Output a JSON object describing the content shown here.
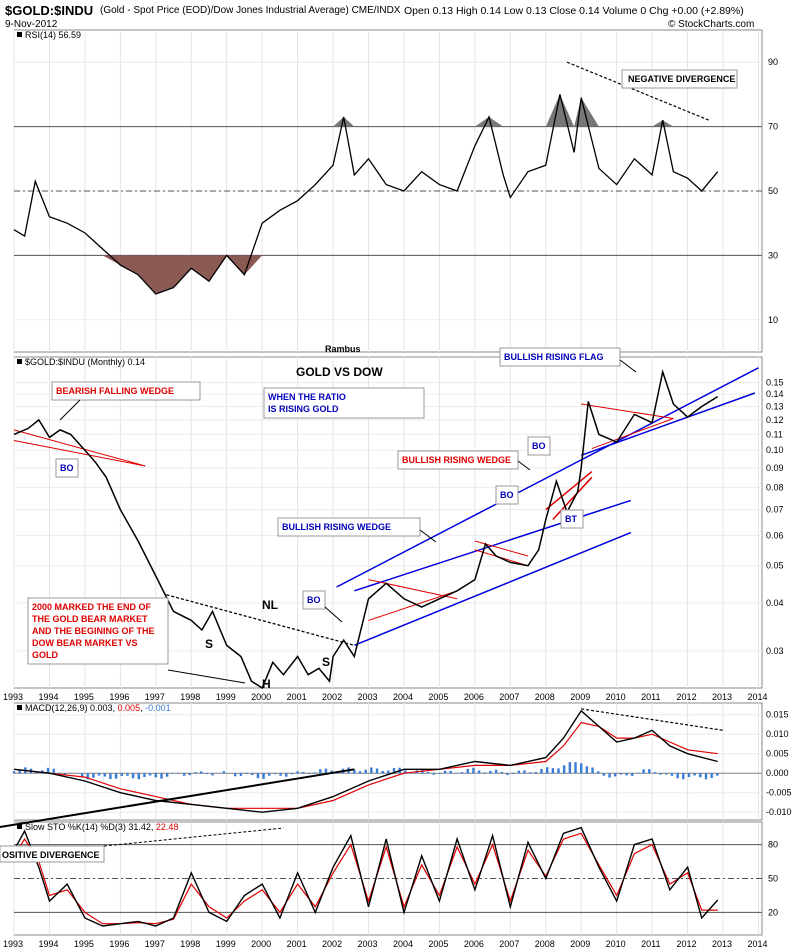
{
  "header": {
    "symbol": "$GOLD:$INDU",
    "description": "(Gold - Spot Price (EOD)/Dow Jones Industrial Average) CME/INDX",
    "date": "9-Nov-2012",
    "quote": "Open 0.13  High 0.14  Low 0.13  Close 0.14  Volume 0  Chg +0.00 (+2.89%)",
    "watermark": "© StockCharts.com"
  },
  "colors": {
    "price": "#000000",
    "blue_line": "#0000dd",
    "red_line": "#e00000",
    "rsi_fill_low": "#8b5a55",
    "rsi_fill_high": "#777777",
    "macd_hist": "#3a7bd5",
    "macd_signal": "#e00000",
    "stoch_d": "#e00000"
  },
  "chart_data": [
    {
      "id": "rsi",
      "type": "line",
      "label": "RSI(14) 56.59",
      "ylim": [
        0,
        100
      ],
      "ticks": [
        10,
        30,
        50,
        70,
        90
      ],
      "reference_lines": [
        30,
        70
      ],
      "dashed_line": 50,
      "x": [
        1993,
        1993.3,
        1993.6,
        1994,
        1994.5,
        1995,
        1995.5,
        1996,
        1996.5,
        1997,
        1997.5,
        1998,
        1998.5,
        1999,
        1999.5,
        2000,
        2000.5,
        2001,
        2001.5,
        2002,
        2002.3,
        2002.6,
        2003,
        2003.5,
        2004,
        2004.5,
        2005,
        2005.5,
        2006,
        2006.4,
        2006.8,
        2007,
        2007.5,
        2008,
        2008.4,
        2008.8,
        2009,
        2009.5,
        2010,
        2010.5,
        2011,
        2011.3,
        2011.6,
        2012,
        2012.4,
        2012.85
      ],
      "values": [
        38,
        36,
        53,
        42,
        40,
        37,
        32,
        27,
        24,
        18,
        20,
        26,
        22,
        30,
        24,
        40,
        44,
        47,
        52,
        58,
        73,
        55,
        60,
        52,
        50,
        56,
        52,
        50,
        64,
        73,
        55,
        48,
        56,
        58,
        80,
        62,
        79,
        57,
        52,
        60,
        55,
        72,
        56,
        54,
        50,
        56
      ],
      "annotations": [
        {
          "text": "NEGATIVE DIVERGENCE"
        }
      ]
    },
    {
      "id": "price",
      "type": "line",
      "label": "$GOLD:$INDU (Monthly) 0.14",
      "title": "GOLD VS DOW",
      "scale": "log",
      "ylim": [
        0.024,
        0.175
      ],
      "ticks": [
        0.03,
        0.04,
        0.05,
        0.06,
        0.07,
        0.08,
        0.09,
        0.1,
        0.11,
        0.12,
        0.13,
        0.14,
        0.15
      ],
      "x_ticks": [
        "1993",
        "1994",
        "1995",
        "1996",
        "1997",
        "1998",
        "1999",
        "2000",
        "2001",
        "2002",
        "2003",
        "2004",
        "2005",
        "2006",
        "2007",
        "2008",
        "2009",
        "2010",
        "2011",
        "2012",
        "2013",
        "2014"
      ],
      "x": [
        1993,
        1993.4,
        1993.7,
        1994,
        1994.3,
        1994.6,
        1995,
        1995.3,
        1995.6,
        1996,
        1996.5,
        1997,
        1997.5,
        1998,
        1998.3,
        1998.6,
        1999,
        1999.4,
        1999.7,
        2000,
        2000.3,
        2000.6,
        2001,
        2001.3,
        2001.6,
        2001.9,
        2002,
        2002.3,
        2002.6,
        2003,
        2003.5,
        2004,
        2004.5,
        2005,
        2005.5,
        2006,
        2006.3,
        2006.6,
        2007,
        2007.5,
        2007.8,
        2008,
        2008.3,
        2008.6,
        2008.9,
        2009,
        2009.2,
        2009.5,
        2010,
        2010.5,
        2011,
        2011.3,
        2011.6,
        2012,
        2012.4,
        2012.85
      ],
      "values": [
        0.11,
        0.114,
        0.12,
        0.108,
        0.113,
        0.11,
        0.1,
        0.093,
        0.085,
        0.07,
        0.058,
        0.047,
        0.038,
        0.036,
        0.034,
        0.038,
        0.031,
        0.029,
        0.025,
        0.024,
        0.028,
        0.026,
        0.029,
        0.026,
        0.027,
        0.025,
        0.029,
        0.032,
        0.029,
        0.041,
        0.045,
        0.041,
        0.039,
        0.041,
        0.043,
        0.046,
        0.057,
        0.053,
        0.051,
        0.05,
        0.055,
        0.066,
        0.083,
        0.069,
        0.078,
        0.09,
        0.134,
        0.11,
        0.105,
        0.124,
        0.118,
        0.16,
        0.132,
        0.122,
        0.13,
        0.138
      ],
      "annotations": [
        {
          "text": "BEARISH FALLING WEDGE"
        },
        {
          "text": "BO"
        },
        {
          "text": "WHEN THE RATIO IS RISING GOLD IS OUTPERFORMING THE DOW"
        },
        {
          "text": "BULLISH RISING FLAG"
        },
        {
          "text": "BULLISH RISING WEDGE"
        },
        {
          "text": "BULLISH RISING WEDGE"
        },
        {
          "text": "BO"
        },
        {
          "text": "BO"
        },
        {
          "text": "BT"
        },
        {
          "text": "BO"
        },
        {
          "text": "NL"
        },
        {
          "text": "S"
        },
        {
          "text": "H"
        },
        {
          "text": "S"
        },
        {
          "text": "2000 MARKED THE END OF THE GOLD BEAR MARKET AND THE BEGINING OF THE DOW BEAR MARKET VS GOLD"
        },
        {
          "text": "Rambus"
        }
      ]
    },
    {
      "id": "macd",
      "type": "line",
      "label_prefix": "MACD(12,26,9) 0.003, ",
      "label_signal": "0.005",
      "label_sep": ", ",
      "label_hist": "-0.001",
      "ylim": [
        -0.012,
        0.018
      ],
      "ticks": [
        -0.01,
        -0.005,
        0.0,
        0.005,
        0.01,
        0.015
      ],
      "tick_labels": [
        "-0.010",
        "-0.005",
        "0.000",
        "0.005",
        "0.010",
        "0.015"
      ],
      "x": [
        1993,
        1994,
        1995,
        1996,
        1997,
        1998,
        1999,
        2000,
        2001,
        2002,
        2003,
        2004,
        2005,
        2006,
        2007,
        2008,
        2008.5,
        2009,
        2009.5,
        2010,
        2010.5,
        2011,
        2011.5,
        2012,
        2012.85
      ],
      "macd": [
        0.001,
        0.0,
        -0.002,
        -0.005,
        -0.007,
        -0.008,
        -0.009,
        -0.01,
        -0.009,
        -0.006,
        -0.002,
        0.001,
        0.001,
        0.003,
        0.002,
        0.004,
        0.009,
        0.016,
        0.012,
        0.008,
        0.009,
        0.011,
        0.007,
        0.005,
        0.003
      ],
      "signal": [
        0.001,
        0.0,
        -0.001,
        -0.004,
        -0.006,
        -0.008,
        -0.009,
        -0.009,
        -0.009,
        -0.007,
        -0.003,
        0.0,
        0.001,
        0.002,
        0.002,
        0.003,
        0.007,
        0.013,
        0.012,
        0.009,
        0.009,
        0.01,
        0.008,
        0.006,
        0.005
      ],
      "histogram": [
        0.001,
        0.001,
        -0.001,
        -0.001,
        -0.001,
        0.0,
        0.0,
        -0.001,
        0.0,
        0.001,
        0.001,
        0.001,
        0.0,
        0.001,
        0.0,
        0.001,
        0.002,
        0.003,
        0.0,
        -0.001,
        0.0,
        0.001,
        -0.001,
        -0.001,
        -0.001
      ]
    },
    {
      "id": "stoch",
      "type": "line",
      "label_prefix": "Slow STO %K(14) %D(3) 31.42, ",
      "label_d": "22.48",
      "ylim": [
        0,
        100
      ],
      "ticks": [
        20,
        50,
        80
      ],
      "x": [
        1993,
        1993.3,
        1993.7,
        1994,
        1994.5,
        1995,
        1995.5,
        1996,
        1996.5,
        1997,
        1997.5,
        1998,
        1998.5,
        1999,
        1999.5,
        2000,
        2000.5,
        2001,
        2001.5,
        2002,
        2002.5,
        2003,
        2003.5,
        2004,
        2004.5,
        2005,
        2005.5,
        2006,
        2006.5,
        2007,
        2007.5,
        2008,
        2008.5,
        2009,
        2009.5,
        2010,
        2010.5,
        2011,
        2011.5,
        2012,
        2012.4,
        2012.85
      ],
      "k": [
        75,
        92,
        60,
        30,
        45,
        15,
        8,
        10,
        12,
        8,
        15,
        55,
        20,
        12,
        35,
        45,
        15,
        55,
        20,
        60,
        88,
        25,
        85,
        20,
        70,
        30,
        85,
        40,
        88,
        25,
        82,
        50,
        90,
        95,
        60,
        30,
        80,
        85,
        40,
        60,
        15,
        31
      ],
      "d": [
        70,
        85,
        65,
        35,
        40,
        20,
        10,
        10,
        11,
        10,
        14,
        45,
        25,
        15,
        30,
        40,
        20,
        45,
        25,
        55,
        80,
        30,
        78,
        25,
        62,
        35,
        78,
        45,
        80,
        30,
        75,
        52,
        85,
        90,
        62,
        35,
        72,
        80,
        45,
        55,
        22,
        22
      ],
      "reference_lines": [
        20,
        80
      ],
      "dashed_line": 50,
      "annotations": [
        {
          "text": "OSITIVE DIVERGENCE"
        }
      ]
    }
  ]
}
